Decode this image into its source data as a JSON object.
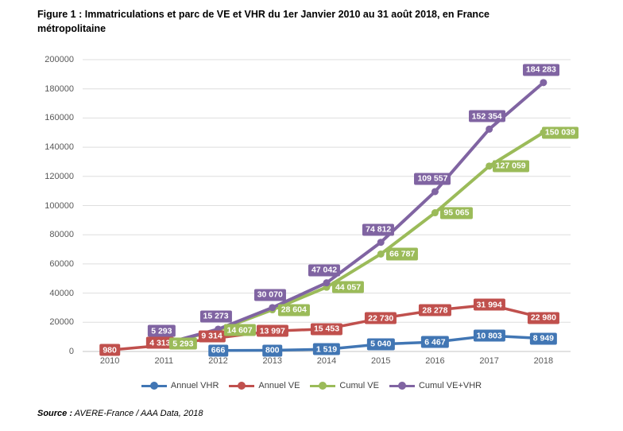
{
  "figure": {
    "title": "Figure 1 : Immatriculations et parc de VE et VHR du 1er Janvier 2010 au 31 août 2018, en France métropolitaine",
    "source_label": "Source :",
    "source_text": " AVERE-France / AAA Data, 2018"
  },
  "chart_data": {
    "type": "line",
    "title": "Figure 1 : Immatriculations et parc de VE et VHR du 1er Janvier 2010 au 31 août 2018, en France métropolitaine",
    "categories": [
      "2010",
      "2011",
      "2012",
      "2013",
      "2014",
      "2015",
      "2016",
      "2017",
      "2018"
    ],
    "series": [
      {
        "name": "Annuel VHR",
        "color": "#4176B4",
        "values": [
          null,
          null,
          666,
          800,
          1519,
          5040,
          6467,
          10803,
          8949
        ],
        "point_labels": [
          "",
          "",
          "666",
          "800",
          "1 519",
          "5 040",
          "6 467",
          "10 803",
          "8 949"
        ]
      },
      {
        "name": "Annuel VE",
        "color": "#C0504D",
        "values": [
          980,
          4313,
          9314,
          13997,
          15453,
          22730,
          28278,
          31994,
          22980
        ],
        "point_labels": [
          "980",
          "4 313",
          "9 314",
          "13 997",
          "15 453",
          "22 730",
          "28 278",
          "31 994",
          "22 980"
        ]
      },
      {
        "name": "Cumul VE",
        "color": "#9BBB59",
        "values": [
          null,
          5293,
          14607,
          28604,
          44057,
          66787,
          95065,
          127059,
          150039
        ],
        "point_labels": [
          "",
          "5 293",
          "14 607",
          "28 604",
          "44 057",
          "66 787",
          "95 065",
          "127 059",
          "150 039"
        ]
      },
      {
        "name": "Cumul VE+VHR",
        "color": "#8064A2",
        "values": [
          null,
          5293,
          15273,
          30070,
          47042,
          74812,
          109557,
          152354,
          184283
        ],
        "point_labels": [
          "",
          "5 293",
          "15 273",
          "30 070",
          "47 042",
          "74 812",
          "109 557",
          "152 354",
          "184 283"
        ]
      }
    ],
    "legend": [
      "Annuel VHR",
      "Annuel VE",
      "Cumul VE",
      "Cumul VE+VHR"
    ],
    "legend_position": "bottom",
    "grid": true,
    "xlabel": "",
    "ylabel": "",
    "ylim": [
      0,
      200000
    ],
    "ytick_step": 20000,
    "ytick_labels": [
      "0",
      "20000",
      "40000",
      "60000",
      "80000",
      "100000",
      "120000",
      "140000",
      "160000",
      "180000",
      "200000"
    ]
  }
}
